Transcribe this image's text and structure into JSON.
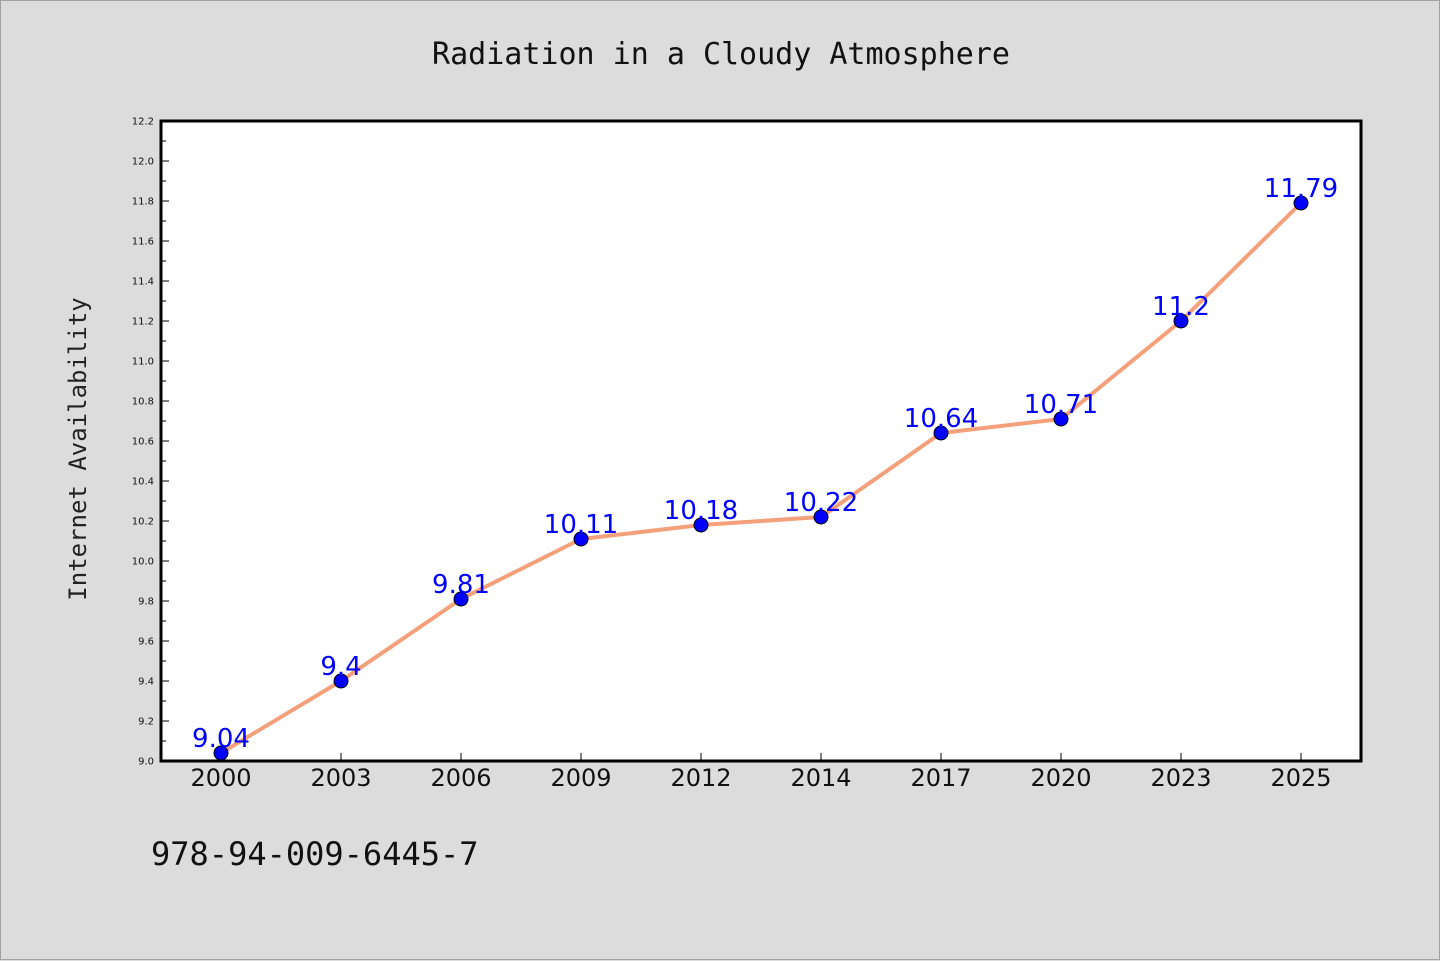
{
  "chart_data": {
    "type": "line",
    "title": "Radiation in a Cloudy Atmosphere",
    "xlabel": "",
    "ylabel": "Internet Availability",
    "categories": [
      "2000",
      "2003",
      "2006",
      "2009",
      "2012",
      "2014",
      "2017",
      "2020",
      "2023",
      "2025"
    ],
    "series": [
      {
        "values": [
          9.04,
          9.4,
          9.81,
          10.11,
          10.18,
          10.22,
          10.64,
          10.71,
          11.2,
          11.79
        ],
        "labels": [
          "9.04",
          "9.4",
          "9.81",
          "10.11",
          "10.18",
          "10.22",
          "10.64",
          "10.71",
          "11.2",
          "11.79"
        ],
        "line_color": "#f4a07a",
        "marker_color": "#0000ff"
      }
    ],
    "ylim": [
      9.0,
      12.2
    ],
    "yticks": [
      "9.0",
      "9.2",
      "9.4",
      "9.6",
      "9.8",
      "10.0",
      "10.2",
      "10.4",
      "10.6",
      "10.8",
      "11.0",
      "11.2",
      "11.4",
      "11.6",
      "11.8",
      "12.0",
      "12.2"
    ],
    "grid": false,
    "legend": "none",
    "data_label_color": "#0000ff"
  },
  "footer": {
    "code": "978-94-009-6445-7"
  }
}
